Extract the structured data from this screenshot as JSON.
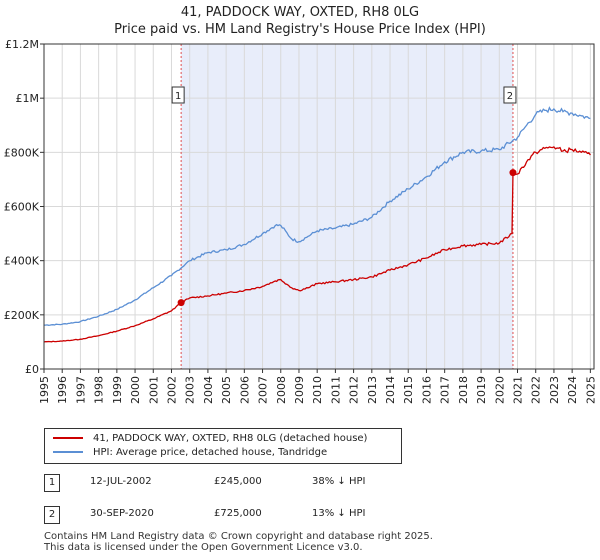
{
  "header": {
    "title_line1": "41, PADDOCK WAY, OXTED, RH8 0LG",
    "title_line2": "Price paid vs. HM Land Registry's House Price Index (HPI)"
  },
  "chart_data": {
    "type": "line",
    "title": "41, PADDOCK WAY, OXTED, RH8 0LG — Price paid vs. HM Land Registry's House Price Index (HPI)",
    "xlabel": "",
    "ylabel": "",
    "xlim": [
      1995,
      2025.2
    ],
    "ylim": [
      0,
      1200000
    ],
    "y_ticks": [
      {
        "value": 0,
        "label": "£0"
      },
      {
        "value": 200000,
        "label": "£200K"
      },
      {
        "value": 400000,
        "label": "£400K"
      },
      {
        "value": 600000,
        "label": "£600K"
      },
      {
        "value": 800000,
        "label": "£800K"
      },
      {
        "value": 1000000,
        "label": "£1M"
      },
      {
        "value": 1200000,
        "label": "£1.2M"
      }
    ],
    "x_ticks": [
      "1995",
      "1996",
      "1997",
      "1998",
      "1999",
      "2000",
      "2001",
      "2002",
      "2003",
      "2004",
      "2005",
      "2006",
      "2007",
      "2008",
      "2009",
      "2010",
      "2011",
      "2012",
      "2013",
      "2014",
      "2015",
      "2016",
      "2017",
      "2018",
      "2019",
      "2020",
      "2021",
      "2022",
      "2023",
      "2024",
      "2025"
    ],
    "grid": true,
    "shaded_region": {
      "from": 2002.53,
      "to": 2020.75,
      "color": "#e8edfa"
    },
    "series": [
      {
        "name": "41, PADDOCK WAY, OXTED, RH8 0LG (detached house)",
        "color": "#cc0000",
        "x": [
          1995,
          1996,
          1997,
          1998,
          1999,
          2000,
          2001,
          2002,
          2002.53,
          2003,
          2004,
          2005,
          2006,
          2007,
          2007.7,
          2008,
          2008.6,
          2009,
          2009.5,
          2010,
          2011,
          2012,
          2013,
          2014,
          2015,
          2016,
          2017,
          2018,
          2019,
          2020,
          2020.7,
          2020.75,
          2021,
          2021.5,
          2022,
          2022.5,
          2023,
          2023.5,
          2024,
          2024.5,
          2025
        ],
        "values": [
          100000,
          103000,
          110000,
          123000,
          140000,
          160000,
          185000,
          215000,
          245000,
          262000,
          270000,
          280000,
          290000,
          305000,
          325000,
          330000,
          300000,
          290000,
          300000,
          315000,
          322000,
          330000,
          340000,
          365000,
          385000,
          410000,
          440000,
          455000,
          460000,
          465000,
          500000,
          725000,
          720000,
          765000,
          800000,
          815000,
          820000,
          805000,
          810000,
          800000,
          790000
        ]
      },
      {
        "name": "HPI: Average price, detached house, Tandridge",
        "color": "#5b8fd4",
        "x": [
          1995,
          1996,
          1997,
          1998,
          1999,
          2000,
          2001,
          2002,
          2003,
          2004,
          2005,
          2006,
          2007,
          2007.7,
          2008,
          2008.6,
          2009,
          2009.5,
          2010,
          2011,
          2012,
          2013,
          2014,
          2015,
          2016,
          2017,
          2018,
          2019,
          2020,
          2021,
          2021.5,
          2022,
          2022.5,
          2023,
          2023.5,
          2024,
          2024.5,
          2025
        ],
        "values": [
          162000,
          165000,
          175000,
          195000,
          220000,
          255000,
          300000,
          345000,
          400000,
          430000,
          440000,
          460000,
          500000,
          530000,
          530000,
          480000,
          470000,
          490000,
          510000,
          520000,
          535000,
          560000,
          620000,
          665000,
          710000,
          765000,
          800000,
          805000,
          810000,
          855000,
          900000,
          940000,
          955000,
          960000,
          950000,
          945000,
          935000,
          925000
        ]
      }
    ],
    "sales": [
      {
        "number": "1",
        "x": 2002.53,
        "value": 245000
      },
      {
        "number": "2",
        "x": 2020.75,
        "value": 725000
      }
    ]
  },
  "legend": {
    "items": [
      {
        "label": "41, PADDOCK WAY, OXTED, RH8 0LG (detached house)",
        "color": "#cc0000"
      },
      {
        "label": "HPI: Average price, detached house, Tandridge",
        "color": "#5b8fd4"
      }
    ]
  },
  "sales_table": [
    {
      "number": "1",
      "date": "12-JUL-2002",
      "price": "£245,000",
      "hpi": "38% ↓ HPI"
    },
    {
      "number": "2",
      "date": "30-SEP-2020",
      "price": "£725,000",
      "hpi": "13% ↓ HPI"
    }
  ],
  "footer": {
    "line1": "Contains HM Land Registry data © Crown copyright and database right 2025.",
    "line2": "This data is licensed under the Open Government Licence v3.0."
  }
}
